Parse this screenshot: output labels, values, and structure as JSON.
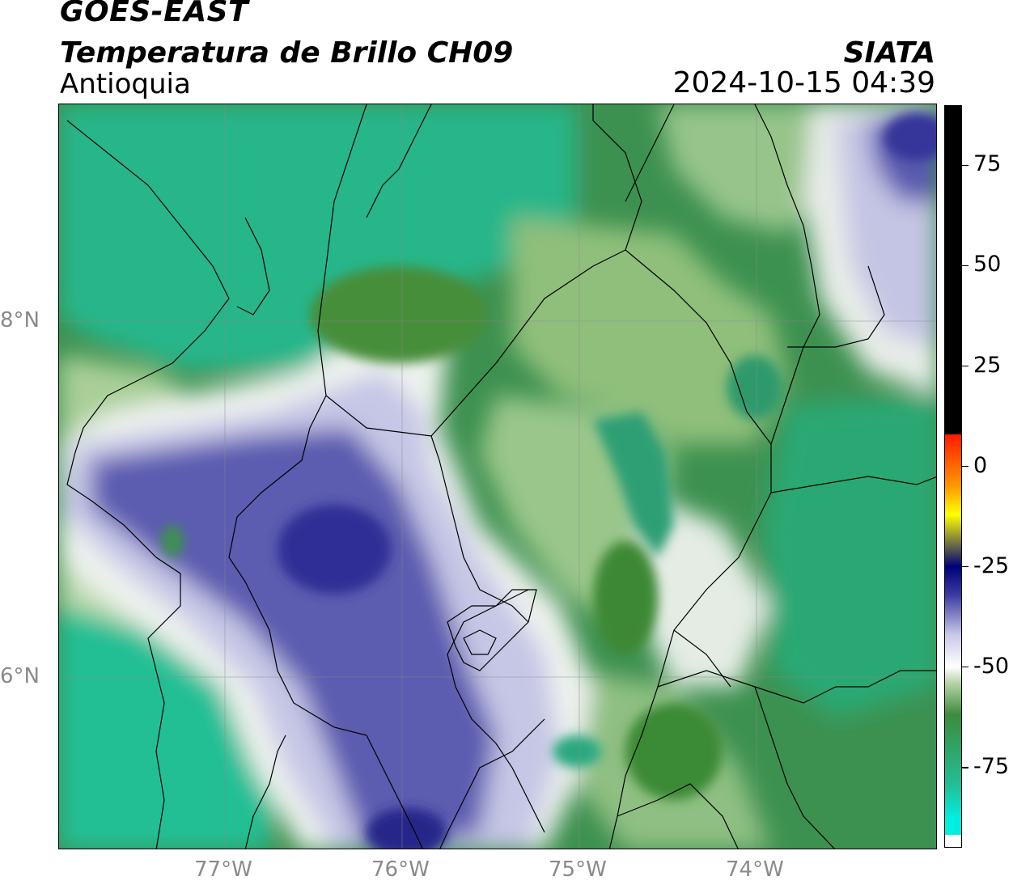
{
  "header": {
    "satellite": "GOES-EAST",
    "product": "Temperatura de Brillo CH09",
    "region": "Antioquia",
    "agency": "SIATA",
    "timestamp": "2024-10-15 04:39"
  },
  "map": {
    "lat_ticks": [
      {
        "label": "8°N",
        "value": 8
      },
      {
        "label": "6°N",
        "value": 6
      }
    ],
    "lon_ticks": [
      {
        "label": "77°W",
        "value": -77
      },
      {
        "label": "76°W",
        "value": -76
      },
      {
        "label": "75°W",
        "value": -75
      },
      {
        "label": "74°W",
        "value": -74
      }
    ],
    "extent": {
      "lon_min": -77.95,
      "lon_max": -73.0,
      "lat_min": 5.1,
      "lat_max": 9.2
    }
  },
  "colorbar": {
    "ticks": [
      "75",
      "50",
      "25",
      "0",
      "-25",
      "-50",
      "-75"
    ],
    "tick_values": [
      75,
      50,
      25,
      0,
      -25,
      -50,
      -75
    ],
    "range": [
      -95,
      90
    ],
    "colors": {
      "hot": "#000000",
      "red": "#ff1a00",
      "orange": "#ff9900",
      "yellow": "#ffff00",
      "navy": "#00007a",
      "indigo": "#3a3aa0",
      "lavender": "#c8c8e8",
      "white": "#ffffff",
      "light_green": "#b8d4a8",
      "green": "#3c8c3c",
      "teal": "#22c09a",
      "cyan": "#00f0e0"
    }
  }
}
